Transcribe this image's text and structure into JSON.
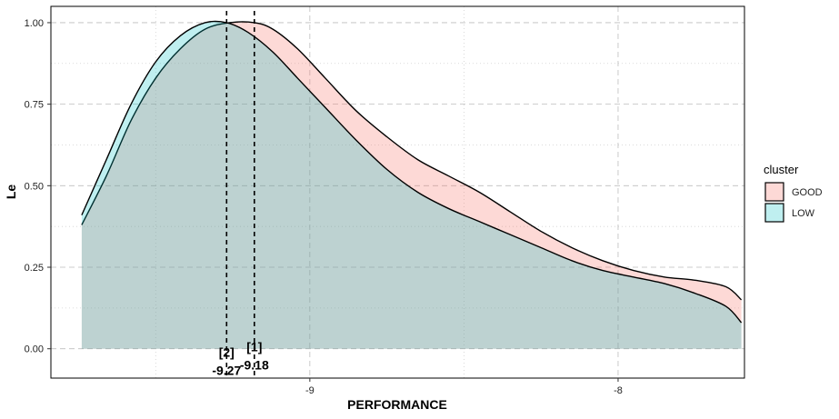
{
  "chart_data": {
    "type": "area",
    "xlabel": "PERFORMANCE",
    "ylabel": "Le",
    "xlim": [
      -9.84,
      -7.59
    ],
    "ylim": [
      -0.09,
      1.05
    ],
    "x_ticks": [
      -9,
      -8
    ],
    "x_tick_labels": [
      "-9",
      "-8"
    ],
    "y_ticks": [
      0,
      0.25,
      0.5,
      0.75,
      1
    ],
    "y_tick_labels": [
      "0.00",
      "0.25",
      "0.50",
      "0.75",
      "1.00"
    ],
    "grid": true,
    "legend": {
      "title": "cluster",
      "placement": "right"
    },
    "series": [
      {
        "name": "GOOD",
        "color": "#F8766D",
        "fill": "rgba(248,118,109,0.28)",
        "x": [
          -9.74,
          -9.66,
          -9.58,
          -9.5,
          -9.42,
          -9.34,
          -9.26,
          -9.18,
          -9.12,
          -9.04,
          -8.95,
          -8.85,
          -8.75,
          -8.65,
          -8.55,
          -8.45,
          -8.35,
          -8.25,
          -8.15,
          -8.05,
          -7.95,
          -7.85,
          -7.75,
          -7.65,
          -7.6
        ],
        "y": [
          0.38,
          0.53,
          0.7,
          0.83,
          0.92,
          0.98,
          1.0,
          1.0,
          0.98,
          0.92,
          0.83,
          0.73,
          0.65,
          0.58,
          0.53,
          0.48,
          0.42,
          0.36,
          0.31,
          0.27,
          0.24,
          0.22,
          0.21,
          0.19,
          0.15
        ]
      },
      {
        "name": "LOW",
        "color": "#00BFC4",
        "fill": "rgba(0,191,196,0.25)",
        "x": [
          -9.74,
          -9.66,
          -9.58,
          -9.5,
          -9.42,
          -9.34,
          -9.27,
          -9.2,
          -9.12,
          -9.04,
          -8.95,
          -8.85,
          -8.75,
          -8.65,
          -8.55,
          -8.45,
          -8.35,
          -8.25,
          -8.15,
          -8.05,
          -7.95,
          -7.85,
          -7.75,
          -7.65,
          -7.6
        ],
        "y": [
          0.41,
          0.58,
          0.75,
          0.88,
          0.96,
          1.0,
          1.0,
          0.97,
          0.91,
          0.83,
          0.74,
          0.64,
          0.55,
          0.48,
          0.43,
          0.39,
          0.35,
          0.31,
          0.27,
          0.24,
          0.22,
          0.2,
          0.17,
          0.13,
          0.08
        ]
      }
    ],
    "vlines": [
      {
        "x": -9.18,
        "label_top": "[1]",
        "label_bottom": "-9.18"
      },
      {
        "x": -9.27,
        "label_top": "[2]",
        "label_bottom": "-9.27"
      }
    ]
  }
}
